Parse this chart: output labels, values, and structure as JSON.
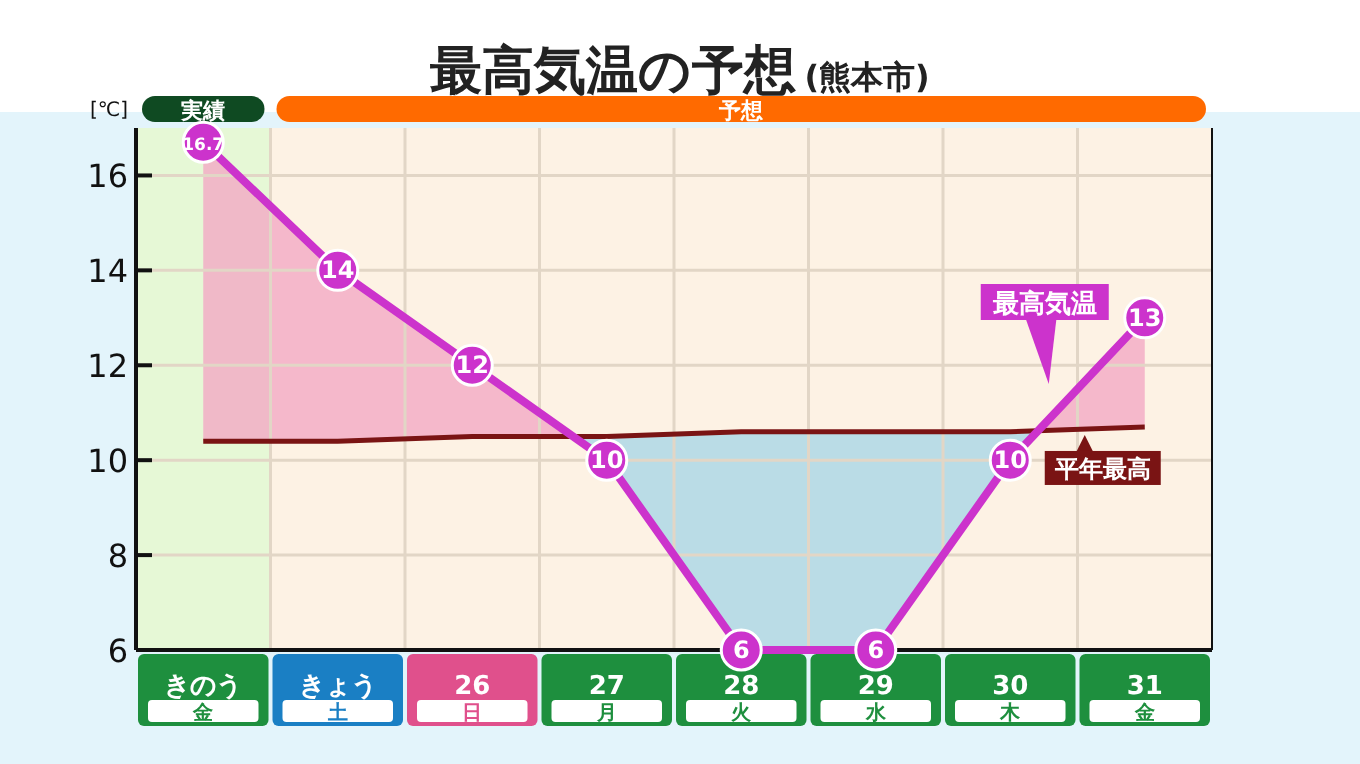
{
  "chart_data": {
    "type": "line",
    "title": "最高気温の予想",
    "subtitle": "(熊本市)",
    "ylabel": "[℃]",
    "categories": [
      "きのう金",
      "きょう土",
      "26日",
      "27月",
      "28火",
      "29水",
      "30木",
      "31金"
    ],
    "series": [
      {
        "name": "最高気温",
        "color": "#cc33cc",
        "marker": "circle",
        "values": [
          16.7,
          14,
          12,
          10,
          6,
          6,
          10,
          13
        ],
        "value_labels": [
          "16.7",
          "14",
          "12",
          "10",
          "6",
          "6",
          "10",
          "13"
        ]
      },
      {
        "name": "平年最高",
        "color": "#7a1414",
        "marker": "none",
        "values": [
          10.4,
          10.4,
          10.5,
          10.5,
          10.6,
          10.6,
          10.6,
          10.7
        ]
      }
    ],
    "bands": [
      {
        "axis": "x",
        "from": "きのう金",
        "to": "きのう金",
        "label": "実績",
        "color": "#e6f8d6"
      },
      {
        "axis": "x",
        "from": "きょう土",
        "to": "31金",
        "label": "予想",
        "color": "#fdf2e4"
      }
    ],
    "ylim": [
      6,
      17
    ],
    "yticks": [
      6,
      8,
      10,
      12,
      14,
      16
    ],
    "grid": true,
    "legend": "right"
  }
}
